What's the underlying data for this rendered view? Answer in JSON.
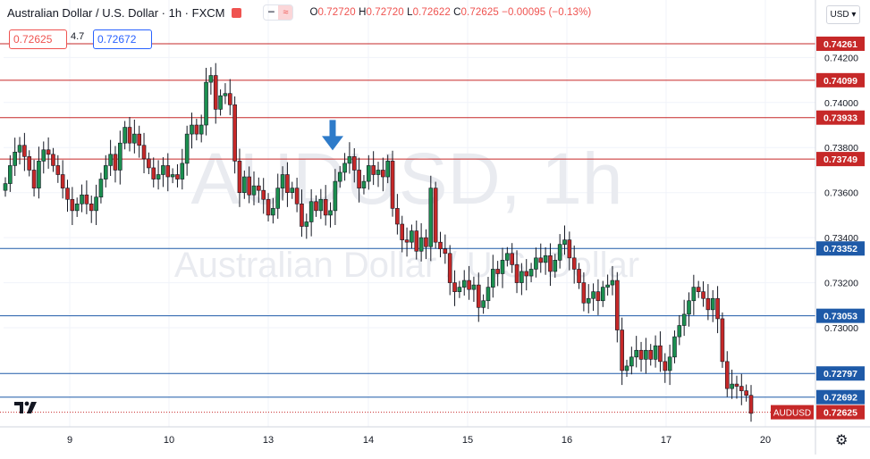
{
  "header": {
    "title": "Australian Dollar / U.S. Dollar · 1h · FXCM",
    "ohlc": [
      {
        "k": "O",
        "v": "0.72720"
      },
      {
        "k": "H",
        "v": "0.72720"
      },
      {
        "k": "L",
        "v": "0.72622"
      },
      {
        "k": "C",
        "v": "0.72625"
      },
      {
        "k": "",
        "v": "−0.00095 (−0.13%)"
      }
    ],
    "bid": "0.72625",
    "spread": "4.7",
    "ask": "0.72672",
    "currency_button": "USD ▾"
  },
  "watermark": {
    "symbol": "AUDUSD, 1h",
    "name": "Australian Dollar / U.S. Dollar"
  },
  "colors": {
    "up": "#26a69a",
    "up_body": "#26a69a",
    "down": "#ef5350",
    "candle_fill_up": "#1b8f4f",
    "candle_fill_down": "#c62828",
    "candle_wick": "#131722",
    "resistance": "#c62828",
    "support": "#1e5aa8",
    "arrow": "#2e7bc9"
  },
  "chart_data": {
    "type": "candlestick",
    "symbol": "AUDUSD",
    "last_price": 0.72625,
    "ylim": [
      0.7256,
      0.7436
    ],
    "y_ticks": [
      0.742,
      0.74,
      0.738,
      0.736,
      0.734,
      0.732,
      0.73
    ],
    "x_tick_labels": [
      "9",
      "10",
      "13",
      "14",
      "15",
      "16",
      "17",
      "20"
    ],
    "grid": true,
    "resistance_levels": [
      0.74261,
      0.74099,
      0.73933,
      0.73749
    ],
    "support_levels": [
      0.73352,
      0.73053,
      0.72797,
      0.72692
    ],
    "marker": {
      "type": "down-arrow",
      "at_close": 0.7374
    },
    "closes": [
      0.7364,
      0.7372,
      0.7378,
      0.7381,
      0.7376,
      0.737,
      0.7362,
      0.7374,
      0.7379,
      0.7377,
      0.7372,
      0.7368,
      0.7362,
      0.7357,
      0.7352,
      0.7355,
      0.7359,
      0.7355,
      0.7352,
      0.7358,
      0.7366,
      0.7372,
      0.7377,
      0.737,
      0.7382,
      0.7389,
      0.7382,
      0.7386,
      0.7381,
      0.7375,
      0.7371,
      0.7366,
      0.7368,
      0.7372,
      0.7367,
      0.7368,
      0.7366,
      0.7373,
      0.7386,
      0.739,
      0.7386,
      0.739,
      0.7409,
      0.7412,
      0.7397,
      0.7403,
      0.7404,
      0.7399,
      0.7374,
      0.736,
      0.7367,
      0.7359,
      0.7363,
      0.7361,
      0.7357,
      0.735,
      0.7353,
      0.7362,
      0.7368,
      0.736,
      0.7362,
      0.7355,
      0.7345,
      0.7347,
      0.7356,
      0.7352,
      0.7357,
      0.735,
      0.7352,
      0.7365,
      0.7369,
      0.7373,
      0.7376,
      0.737,
      0.7362,
      0.7365,
      0.7372,
      0.7368,
      0.737,
      0.7367,
      0.7374,
      0.7353,
      0.7346,
      0.7339,
      0.7338,
      0.7343,
      0.7334,
      0.734,
      0.7336,
      0.7362,
      0.7338,
      0.7335,
      0.7333,
      0.732,
      0.7316,
      0.7318,
      0.7321,
      0.7317,
      0.7319,
      0.7309,
      0.7312,
      0.7318,
      0.7326,
      0.7324,
      0.733,
      0.7333,
      0.7328,
      0.732,
      0.7325,
      0.7323,
      0.7326,
      0.7331,
      0.7329,
      0.7332,
      0.7325,
      0.733,
      0.7337,
      0.7339,
      0.7331,
      0.7326,
      0.732,
      0.7311,
      0.7313,
      0.7316,
      0.7312,
      0.7318,
      0.7319,
      0.7321,
      0.7299,
      0.7281,
      0.7283,
      0.7287,
      0.729,
      0.7286,
      0.729,
      0.7286,
      0.7292,
      0.7285,
      0.7281,
      0.7287,
      0.7296,
      0.7301,
      0.7306,
      0.7312,
      0.7318,
      0.7316,
      0.7313,
      0.7308,
      0.7313,
      0.7304,
      0.7285,
      0.7273,
      0.7275,
      0.7274,
      0.7272,
      0.727,
      0.7262
    ]
  }
}
